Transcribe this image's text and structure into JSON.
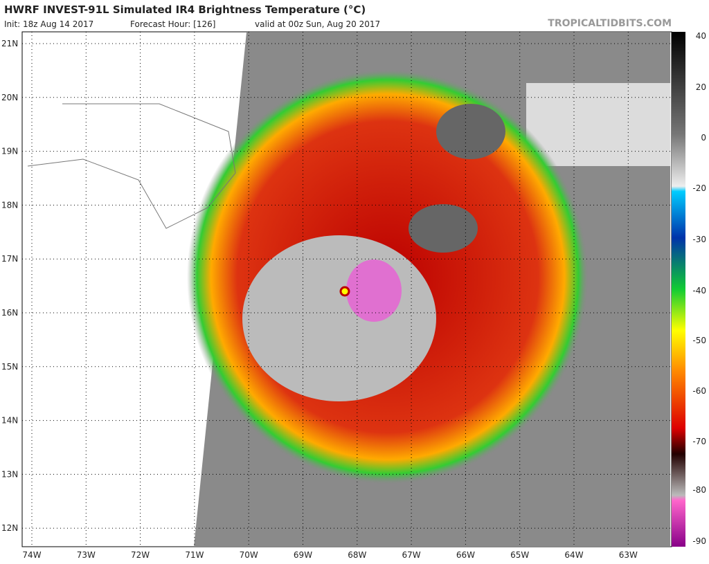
{
  "header": {
    "title": "HWRF INVEST-91L Simulated IR4 Brightness Temperature (°C)",
    "init": "Init: 18z Aug 14 2017",
    "forecast_hour": "Forecast Hour: [126]",
    "valid": "valid at 00z Sun, Aug 20 2017",
    "site": "TROPICALTIDBITS.COM"
  },
  "map": {
    "latitude_labels": [
      "21N",
      "20N",
      "19N",
      "18N",
      "17N",
      "16N",
      "15N",
      "14N",
      "13N",
      "12N"
    ],
    "longitude_labels": [
      "74W",
      "73W",
      "72W",
      "71W",
      "70W",
      "69W",
      "68W",
      "67W",
      "66W",
      "65W",
      "64W",
      "63W"
    ]
  },
  "colorbar": {
    "tick_labels": [
      "40",
      "20",
      "0",
      "-20",
      "-30",
      "-40",
      "-50",
      "-60",
      "-70",
      "-80",
      "-90"
    ]
  }
}
